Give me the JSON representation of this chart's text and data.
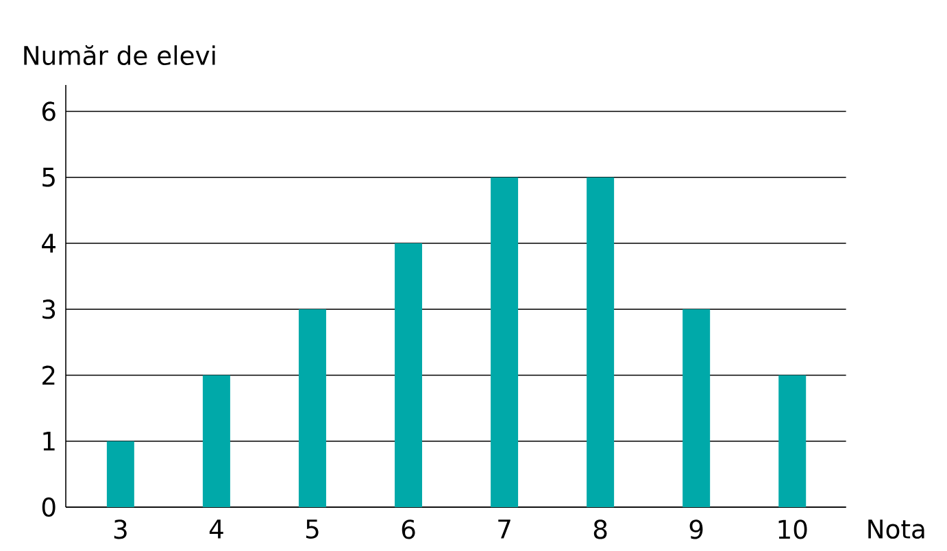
{
  "chart_data": {
    "type": "bar",
    "xlabel": "Nota",
    "ylabel": "Număr de elevi",
    "categories": [
      "3",
      "4",
      "5",
      "6",
      "7",
      "8",
      "9",
      "10"
    ],
    "values": [
      1,
      2,
      3,
      4,
      5,
      5,
      3,
      2
    ],
    "color": "#00a9a9",
    "ylim": [
      0,
      6.4
    ],
    "yticks": [
      0,
      1,
      2,
      3,
      4,
      5,
      6
    ],
    "grid": "y"
  }
}
